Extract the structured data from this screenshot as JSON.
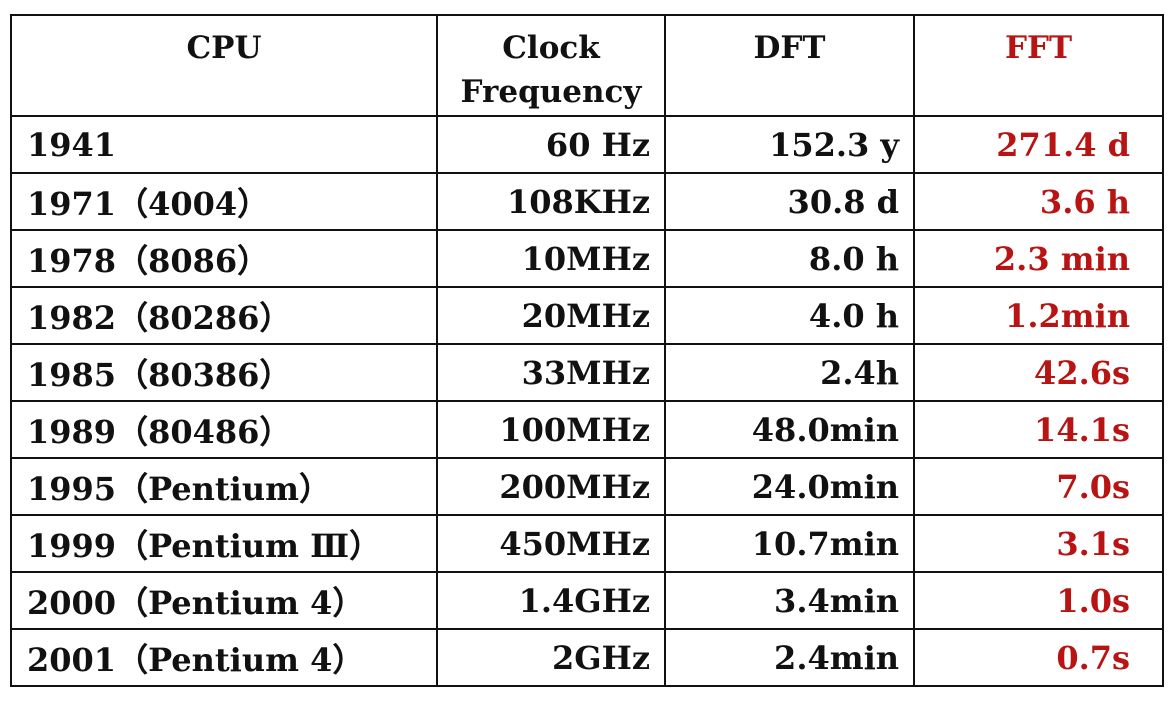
{
  "table": {
    "headers": {
      "cpu": "CPU",
      "clock_line1": "Clock",
      "clock_line2": "Frequency",
      "dft": "DFT",
      "fft": "FFT"
    },
    "rows": [
      {
        "cpu": "1941",
        "clock": "60 Hz",
        "dft": "152.3 y",
        "fft": "271.4 d"
      },
      {
        "cpu": "1971（4004）",
        "clock": "108KHz",
        "dft": "30.8 d",
        "fft": "3.6 h"
      },
      {
        "cpu": "1978（8086）",
        "clock": "10MHz",
        "dft": "8.0 h",
        "fft": "2.3 min"
      },
      {
        "cpu": "1982（80286）",
        "clock": "20MHz",
        "dft": "4.0 h",
        "fft": "1.2min"
      },
      {
        "cpu": "1985（80386）",
        "clock": "33MHz",
        "dft": "2.4h",
        "fft": "42.6s"
      },
      {
        "cpu": "1989（80486）",
        "clock": "100MHz",
        "dft": "48.0min",
        "fft": "14.1s"
      },
      {
        "cpu": "1995（Pentium）",
        "clock": "200MHz",
        "dft": "24.0min",
        "fft": "7.0s"
      },
      {
        "cpu": "1999（Pentium Ⅲ）",
        "clock": "450MHz",
        "dft": "10.7min",
        "fft": "3.1s"
      },
      {
        "cpu": "2000（Pentium 4）",
        "clock": "1.4GHz",
        "dft": "3.4min",
        "fft": "1.0s"
      },
      {
        "cpu": "2001（Pentium 4）",
        "clock": "2GHz",
        "dft": "2.4min",
        "fft": "0.7s"
      }
    ]
  },
  "colors": {
    "text": "#111111",
    "fft_accent": "#b81414",
    "border": "#111111"
  }
}
